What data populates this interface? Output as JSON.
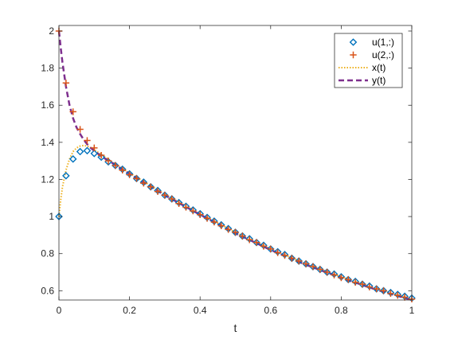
{
  "chart_data": {
    "type": "line",
    "title": "",
    "xlabel": "t",
    "ylabel": "",
    "xlim": [
      0,
      1
    ],
    "ylim": [
      0.55,
      2.03
    ],
    "xticks": [
      0,
      0.2,
      0.4,
      0.6,
      0.8,
      1
    ],
    "xtick_labels": [
      "0",
      "0.2",
      "0.4",
      "0.6",
      "0.8",
      "1"
    ],
    "yticks": [
      0.6,
      0.8,
      1,
      1.2,
      1.4,
      1.6,
      1.8,
      2
    ],
    "ytick_labels": [
      "0.6",
      "0.8",
      "1",
      "1.2",
      "1.4",
      "1.6",
      "1.8",
      "2"
    ],
    "grid": false,
    "legend_position": "top-right",
    "series": [
      {
        "name": "u(1,:)",
        "style": "markers",
        "marker": "diamond",
        "color": "#0072BD",
        "x": [
          0,
          0.02,
          0.04,
          0.06,
          0.08,
          0.1,
          0.12,
          0.14,
          0.16,
          0.18,
          0.2,
          0.22,
          0.24,
          0.26,
          0.28,
          0.3,
          0.32,
          0.34,
          0.36,
          0.38,
          0.4,
          0.42,
          0.44,
          0.46,
          0.48,
          0.5,
          0.52,
          0.54,
          0.56,
          0.58,
          0.6,
          0.62,
          0.64,
          0.66,
          0.68,
          0.7,
          0.72,
          0.74,
          0.76,
          0.78,
          0.8,
          0.82,
          0.84,
          0.86,
          0.88,
          0.9,
          0.92,
          0.94,
          0.96,
          0.98,
          1.0
        ],
        "y": [
          1.0,
          1.22,
          1.31,
          1.35,
          1.355,
          1.34,
          1.32,
          1.295,
          1.275,
          1.255,
          1.23,
          1.205,
          1.185,
          1.16,
          1.14,
          1.115,
          1.095,
          1.075,
          1.055,
          1.035,
          1.015,
          0.995,
          0.975,
          0.955,
          0.935,
          0.915,
          0.895,
          0.88,
          0.86,
          0.845,
          0.825,
          0.81,
          0.795,
          0.775,
          0.76,
          0.745,
          0.73,
          0.715,
          0.7,
          0.69,
          0.675,
          0.66,
          0.65,
          0.635,
          0.625,
          0.61,
          0.6,
          0.59,
          0.58,
          0.57,
          0.56
        ]
      },
      {
        "name": "u(2,:)",
        "style": "markers",
        "marker": "plus",
        "color": "#D95319",
        "x": [
          0,
          0.02,
          0.04,
          0.06,
          0.08,
          0.1,
          0.12,
          0.14,
          0.16,
          0.18,
          0.2,
          0.22,
          0.24,
          0.26,
          0.28,
          0.3,
          0.32,
          0.34,
          0.36,
          0.38,
          0.4,
          0.42,
          0.44,
          0.46,
          0.48,
          0.5,
          0.52,
          0.54,
          0.56,
          0.58,
          0.6,
          0.62,
          0.64,
          0.66,
          0.68,
          0.7,
          0.72,
          0.74,
          0.76,
          0.78,
          0.8,
          0.82,
          0.84,
          0.86,
          0.88,
          0.9,
          0.92,
          0.94,
          0.96,
          0.98,
          1.0
        ],
        "y": [
          2.0,
          1.72,
          1.565,
          1.47,
          1.41,
          1.37,
          1.33,
          1.3,
          1.275,
          1.25,
          1.225,
          1.205,
          1.18,
          1.16,
          1.135,
          1.115,
          1.095,
          1.07,
          1.05,
          1.03,
          1.01,
          0.99,
          0.97,
          0.95,
          0.93,
          0.915,
          0.895,
          0.875,
          0.86,
          0.84,
          0.825,
          0.805,
          0.79,
          0.775,
          0.76,
          0.745,
          0.73,
          0.715,
          0.7,
          0.685,
          0.67,
          0.66,
          0.645,
          0.635,
          0.62,
          0.61,
          0.6,
          0.585,
          0.575,
          0.565,
          0.555
        ]
      },
      {
        "name": "x(t)",
        "style": "dotted",
        "color": "#EDB120",
        "x": [
          0,
          0.005,
          0.01,
          0.02,
          0.03,
          0.04,
          0.05,
          0.06,
          0.07,
          0.08,
          0.09,
          0.1,
          0.12,
          0.15,
          0.2,
          0.3,
          0.4,
          0.5,
          0.6,
          0.7,
          0.8,
          0.9,
          1.0
        ],
        "y": [
          1.0,
          1.09,
          1.16,
          1.25,
          1.31,
          1.35,
          1.37,
          1.38,
          1.383,
          1.38,
          1.372,
          1.36,
          1.335,
          1.295,
          1.235,
          1.12,
          1.015,
          0.915,
          0.825,
          0.745,
          0.675,
          0.61,
          0.555
        ]
      },
      {
        "name": "y(t)",
        "style": "dashed",
        "color": "#7E2F8E",
        "x": [
          0,
          0.005,
          0.01,
          0.02,
          0.03,
          0.04,
          0.05,
          0.06,
          0.07,
          0.08,
          0.09,
          0.1,
          0.12,
          0.15,
          0.2,
          0.3,
          0.4,
          0.5,
          0.6,
          0.7,
          0.8,
          0.9,
          1.0
        ],
        "y": [
          2.0,
          1.91,
          1.83,
          1.7,
          1.6,
          1.53,
          1.48,
          1.445,
          1.415,
          1.39,
          1.37,
          1.355,
          1.325,
          1.29,
          1.23,
          1.115,
          1.01,
          0.91,
          0.82,
          0.74,
          0.67,
          0.605,
          0.55
        ]
      }
    ]
  }
}
